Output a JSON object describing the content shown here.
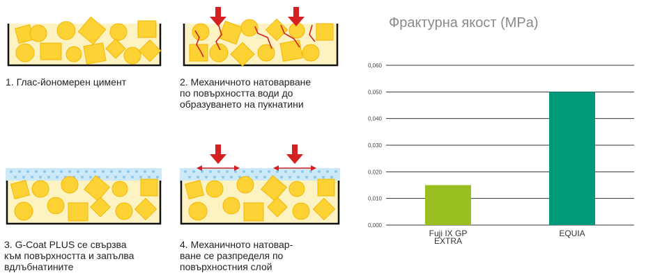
{
  "captions": [
    "1. Глас-йономерен цимент",
    "2. Механичното натоварване\nпо повърхността води до\nобразуването на пукнатини",
    "3. G-Coat PLUS се свързва\nкъм повърхността и запълва\nвдлъбнатините",
    "4. Механичното натовар-\nване се разпределя по\nповърхностния слой"
  ],
  "colors": {
    "fill_bg": "#fdf3c2",
    "particle": "#fdd234",
    "particle_stroke": "#f2b705",
    "coat": "#cde8f6",
    "coat_dots": "#8cc8ec",
    "arrow": "#d42020",
    "bar1": "#98bf1f",
    "bar2": "#00997a"
  },
  "chart_data": {
    "type": "bar",
    "title": "Фрактурна якост (MPa)",
    "categories": [
      "Fuji IX GP\nEXTRA",
      "EQUIA"
    ],
    "values": [
      0.015,
      0.05
    ],
    "ylim": [
      0,
      0.06
    ],
    "yticks": [
      "0,000",
      "0,010",
      "0,020",
      "0,030",
      "0,040",
      "0,050",
      "0,060"
    ],
    "xlabel": "",
    "ylabel": "",
    "grid": true
  }
}
